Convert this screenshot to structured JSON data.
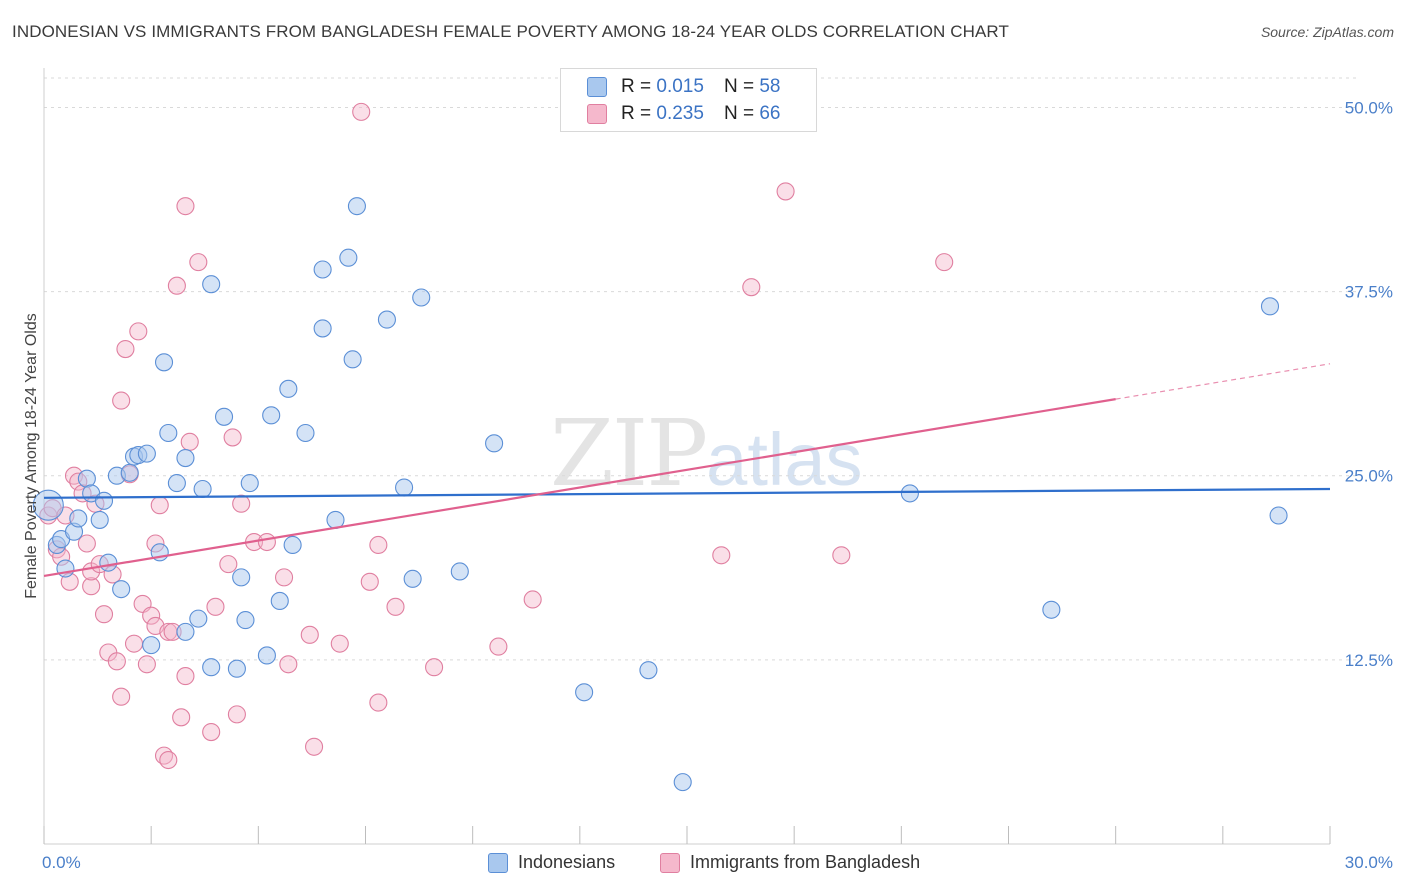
{
  "title": "INDONESIAN VS IMMIGRANTS FROM BANGLADESH FEMALE POVERTY AMONG 18-24 YEAR OLDS CORRELATION CHART",
  "source": "Source: ZipAtlas.com",
  "watermark": {
    "zip": "ZIP",
    "atlas": "atlas"
  },
  "legend": {
    "rows": [
      {
        "r_label": "R = ",
        "r_value": "0.015",
        "n_label": "N = ",
        "n_value": "58"
      },
      {
        "r_label": "R = ",
        "r_value": "0.235",
        "n_label": "N = ",
        "n_value": "66"
      }
    ]
  },
  "bottom_legend": [
    "Indonesians",
    "Immigrants from Bangladesh"
  ],
  "colors": {
    "blue_fill": "#a9c8ee",
    "blue_stroke": "#5b8fd6",
    "blue_line": "#2f6fcc",
    "pink_fill": "#f5b8cc",
    "pink_stroke": "#e07fa0",
    "pink_line": "#e0608e",
    "grid": "#d9d9d9",
    "tick_text": "#4a7fc9"
  },
  "chart_data": {
    "type": "scatter",
    "ylabel": "Female Poverty Among 18-24 Year Olds",
    "xlim": [
      0,
      30
    ],
    "ylim": [
      0,
      52
    ],
    "x_tick_labels": [
      "0.0%",
      "30.0%"
    ],
    "y_ticks": [
      12.5,
      25.0,
      37.5,
      50.0
    ],
    "y_tick_labels": [
      "12.5%",
      "25.0%",
      "37.5%",
      "50.0%"
    ],
    "grid": "horizontal dashed",
    "series": [
      {
        "name": "Indonesians",
        "color": "blue",
        "trend": {
          "x": [
            0,
            30
          ],
          "y": [
            23.5,
            24.1
          ]
        },
        "points": [
          [
            0.1,
            23.0
          ],
          [
            0.3,
            20.3
          ],
          [
            0.4,
            20.7
          ],
          [
            0.5,
            18.7
          ],
          [
            0.7,
            21.2
          ],
          [
            0.8,
            22.1
          ],
          [
            1.0,
            24.8
          ],
          [
            1.1,
            23.8
          ],
          [
            1.3,
            22.0
          ],
          [
            1.4,
            23.3
          ],
          [
            1.5,
            19.1
          ],
          [
            1.8,
            17.3
          ],
          [
            1.7,
            25.0
          ],
          [
            2.0,
            25.2
          ],
          [
            2.1,
            26.3
          ],
          [
            2.2,
            26.4
          ],
          [
            2.4,
            26.5
          ],
          [
            2.5,
            13.5
          ],
          [
            2.7,
            19.8
          ],
          [
            2.8,
            32.7
          ],
          [
            2.9,
            27.9
          ],
          [
            3.1,
            24.5
          ],
          [
            3.3,
            26.2
          ],
          [
            3.3,
            14.4
          ],
          [
            3.6,
            15.3
          ],
          [
            3.7,
            24.1
          ],
          [
            3.9,
            12.0
          ],
          [
            3.9,
            38.0
          ],
          [
            4.2,
            29.0
          ],
          [
            4.5,
            11.9
          ],
          [
            4.6,
            18.1
          ],
          [
            4.7,
            15.2
          ],
          [
            4.8,
            24.5
          ],
          [
            5.2,
            12.8
          ],
          [
            5.3,
            29.1
          ],
          [
            5.5,
            16.5
          ],
          [
            5.7,
            30.9
          ],
          [
            5.8,
            20.3
          ],
          [
            6.1,
            27.9
          ],
          [
            6.5,
            39.0
          ],
          [
            6.5,
            35.0
          ],
          [
            6.8,
            22.0
          ],
          [
            7.1,
            39.8
          ],
          [
            7.2,
            32.9
          ],
          [
            7.3,
            43.3
          ],
          [
            8.0,
            35.6
          ],
          [
            8.4,
            24.2
          ],
          [
            8.6,
            18.0
          ],
          [
            8.8,
            37.1
          ],
          [
            9.7,
            18.5
          ],
          [
            10.5,
            27.2
          ],
          [
            12.6,
            10.3
          ],
          [
            14.1,
            11.8
          ],
          [
            14.9,
            4.2
          ],
          [
            20.2,
            23.8
          ],
          [
            23.5,
            15.9
          ],
          [
            28.6,
            36.5
          ],
          [
            28.8,
            22.3
          ]
        ]
      },
      {
        "name": "Immigrants from Bangladesh",
        "color": "pink",
        "trend": {
          "x": [
            0,
            25
          ],
          "y": [
            18.2,
            30.2
          ],
          "x_dashed_end": 30,
          "y_dashed_end": 32.6
        },
        "points": [
          [
            0.1,
            22.3
          ],
          [
            0.2,
            22.8
          ],
          [
            0.3,
            20.0
          ],
          [
            0.4,
            19.5
          ],
          [
            0.5,
            22.3
          ],
          [
            0.6,
            17.8
          ],
          [
            0.7,
            25.0
          ],
          [
            0.8,
            24.6
          ],
          [
            0.9,
            23.8
          ],
          [
            1.0,
            20.4
          ],
          [
            1.1,
            17.5
          ],
          [
            1.1,
            18.5
          ],
          [
            1.2,
            23.1
          ],
          [
            1.3,
            19.0
          ],
          [
            1.4,
            15.6
          ],
          [
            1.5,
            13.0
          ],
          [
            1.6,
            18.3
          ],
          [
            1.7,
            12.4
          ],
          [
            1.8,
            10.0
          ],
          [
            1.8,
            30.1
          ],
          [
            1.9,
            33.6
          ],
          [
            2.0,
            25.1
          ],
          [
            2.1,
            13.6
          ],
          [
            2.2,
            34.8
          ],
          [
            2.3,
            16.3
          ],
          [
            2.4,
            12.2
          ],
          [
            2.5,
            15.5
          ],
          [
            2.6,
            20.4
          ],
          [
            2.6,
            14.8
          ],
          [
            2.7,
            23.0
          ],
          [
            2.8,
            6.0
          ],
          [
            2.9,
            14.4
          ],
          [
            2.9,
            5.7
          ],
          [
            3.0,
            14.4
          ],
          [
            3.1,
            37.9
          ],
          [
            3.2,
            8.6
          ],
          [
            3.3,
            11.4
          ],
          [
            3.3,
            43.3
          ],
          [
            3.4,
            27.3
          ],
          [
            3.6,
            39.5
          ],
          [
            3.9,
            7.6
          ],
          [
            4.0,
            16.1
          ],
          [
            4.3,
            19.0
          ],
          [
            4.4,
            27.6
          ],
          [
            4.5,
            8.8
          ],
          [
            4.6,
            23.1
          ],
          [
            4.9,
            20.5
          ],
          [
            5.2,
            20.5
          ],
          [
            5.6,
            18.1
          ],
          [
            5.7,
            12.2
          ],
          [
            6.2,
            14.2
          ],
          [
            6.3,
            6.6
          ],
          [
            6.9,
            13.6
          ],
          [
            7.4,
            49.7
          ],
          [
            7.6,
            17.8
          ],
          [
            7.8,
            9.6
          ],
          [
            7.8,
            20.3
          ],
          [
            8.2,
            16.1
          ],
          [
            9.1,
            12.0
          ],
          [
            10.6,
            13.4
          ],
          [
            11.4,
            16.6
          ],
          [
            15.8,
            19.6
          ],
          [
            16.5,
            37.8
          ],
          [
            17.3,
            44.3
          ],
          [
            18.6,
            19.6
          ],
          [
            21.0,
            39.5
          ]
        ]
      }
    ]
  }
}
